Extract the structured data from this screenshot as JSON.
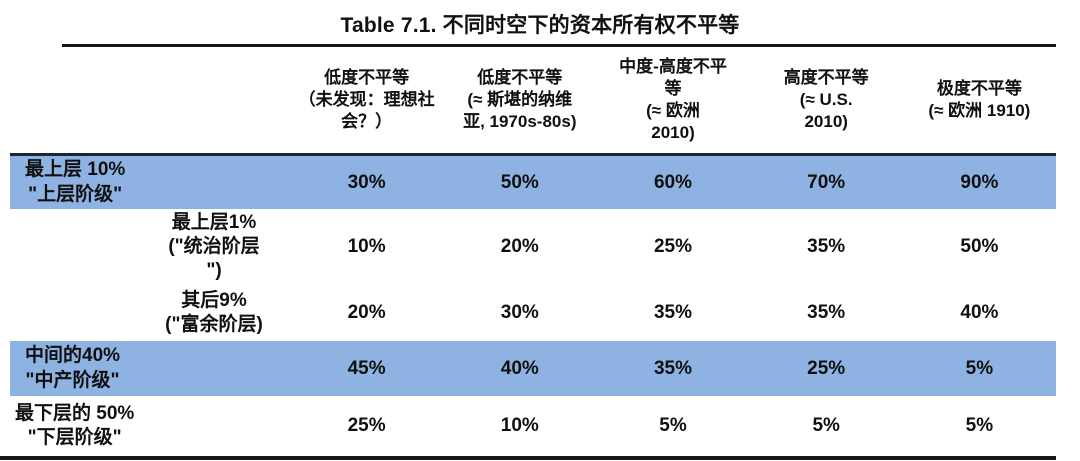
{
  "title": "Table 7.1. 不同时空下的资本所有权不平等",
  "table": {
    "highlight_color": "#8EB3E3",
    "columns": [
      {
        "label": "低度不平等\n（未发现：理想社\n会？）"
      },
      {
        "label": "低度不平等\n(≈  斯堪的纳维\n亚, 1970s-80s)"
      },
      {
        "label": "中度-高度不平\n等\n(≈ 欧洲\n2010)"
      },
      {
        "label": "高度不平等\n(≈ U.S.\n2010)"
      },
      {
        "label": "极度不平等\n(≈ 欧洲 1910)"
      }
    ],
    "rows": [
      {
        "label": "最上层 10%\n\"上层阶级\"",
        "values": [
          "30%",
          "50%",
          "60%",
          "70%",
          "90%"
        ]
      },
      {
        "label": "最上层1%\n(\"统治阶层\n\")",
        "values": [
          "10%",
          "20%",
          "25%",
          "35%",
          "50%"
        ]
      },
      {
        "label": "其后9%\n(\"富余阶层)",
        "values": [
          "20%",
          "30%",
          "35%",
          "35%",
          "40%"
        ]
      },
      {
        "label": "中间的40%\n\"中产阶级\"",
        "values": [
          "45%",
          "40%",
          "35%",
          "25%",
          "5%"
        ]
      },
      {
        "label": "最下层的 50%\n\"下层阶级\"",
        "values": [
          "25%",
          "10%",
          "5%",
          "5%",
          "5%"
        ]
      }
    ]
  }
}
